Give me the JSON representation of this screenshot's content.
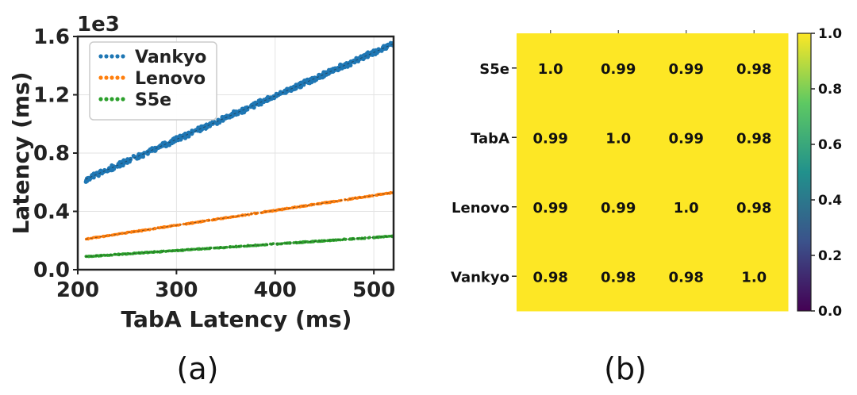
{
  "colors": {
    "vankyo": "#1f77b4",
    "lenovo": "#ff7f0e",
    "s5e": "#2ca02c",
    "heat_high": "#fde725",
    "heat_low": "#440154"
  },
  "captions": {
    "left": "(a)",
    "right": "(b)"
  },
  "chart_data": [
    {
      "type": "scatter",
      "xlabel": "TabA Latency (ms)",
      "ylabel": "Latency (ms)",
      "y_scale_label": "1e3",
      "xlim": [
        200,
        520
      ],
      "ylim": [
        0,
        1.6
      ],
      "x_ticks": [
        200,
        300,
        400,
        500
      ],
      "y_ticks": [
        0.0,
        0.4,
        0.8,
        1.2,
        1.6
      ],
      "x_tick_labels": [
        "200",
        "300",
        "400",
        "500"
      ],
      "y_tick_labels": [
        "0.0",
        "0.4",
        "0.8",
        "1.2",
        "1.6"
      ],
      "grid": true,
      "legend": "top-left",
      "series": [
        {
          "name": "Vankyo",
          "x_range": [
            208,
            520
          ],
          "y_range": [
            0.62,
            1.55
          ],
          "spread": 0.02
        },
        {
          "name": "Lenovo",
          "x_range": [
            208,
            520
          ],
          "y_range": [
            0.21,
            0.53
          ],
          "spread": 0.004
        },
        {
          "name": "S5e",
          "x_range": [
            208,
            520
          ],
          "y_range": [
            0.09,
            0.23
          ],
          "spread": 0.004
        }
      ]
    },
    {
      "type": "heatmap",
      "rows": [
        "S5e",
        "TabA",
        "Lenovo",
        "Vankyo"
      ],
      "values": [
        [
          "1.0",
          "0.99",
          "0.99",
          "0.98"
        ],
        [
          "0.99",
          "1.0",
          "0.99",
          "0.98"
        ],
        [
          "0.99",
          "0.99",
          "1.0",
          "0.98"
        ],
        [
          "0.98",
          "0.98",
          "0.98",
          "1.0"
        ]
      ],
      "colorbar_range": [
        0.0,
        1.0
      ],
      "colorbar_ticks": [
        "0.0",
        "0.2",
        "0.4",
        "0.6",
        "0.8",
        "1.0"
      ]
    }
  ]
}
